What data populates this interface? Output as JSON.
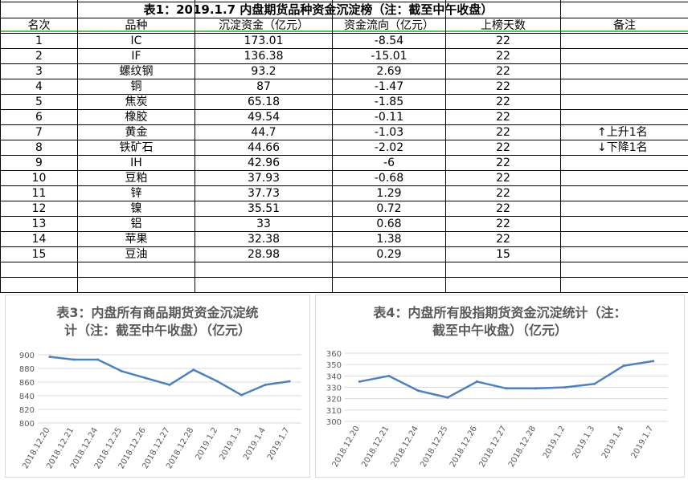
{
  "table": {
    "title": "表1：2019.1.7 内盘期货品种资金沉淀榜（注：截至中午收盘）",
    "headers": [
      "名次",
      "品种",
      "沉淀资金（亿元）",
      "资金流向（亿元）",
      "上榜天数",
      "备注"
    ],
    "rows": [
      {
        "rank": "1",
        "name": "IC",
        "fund": "173.01",
        "flow": "-8.54",
        "days": "22",
        "note": ""
      },
      {
        "rank": "2",
        "name": "IF",
        "fund": "136.38",
        "flow": "-15.01",
        "days": "22",
        "note": ""
      },
      {
        "rank": "3",
        "name": "螺纹钢",
        "fund": "93.2",
        "flow": "2.69",
        "days": "22",
        "note": ""
      },
      {
        "rank": "4",
        "name": "铜",
        "fund": "87",
        "flow": "-1.47",
        "days": "22",
        "note": ""
      },
      {
        "rank": "5",
        "name": "焦炭",
        "fund": "65.18",
        "flow": "-1.85",
        "days": "22",
        "note": ""
      },
      {
        "rank": "6",
        "name": "橡胶",
        "fund": "49.54",
        "flow": "-0.11",
        "days": "22",
        "note": ""
      },
      {
        "rank": "7",
        "name": "黄金",
        "fund": "44.7",
        "flow": "-1.03",
        "days": "22",
        "note": "↑上升1名"
      },
      {
        "rank": "8",
        "name": "铁矿石",
        "fund": "44.66",
        "flow": "-2.02",
        "days": "22",
        "note": "↓下降1名"
      },
      {
        "rank": "9",
        "name": "IH",
        "fund": "42.96",
        "flow": "-6",
        "days": "22",
        "note": ""
      },
      {
        "rank": "10",
        "name": "豆粕",
        "fund": "37.93",
        "flow": "-0.68",
        "days": "22",
        "note": ""
      },
      {
        "rank": "11",
        "name": "锌",
        "fund": "37.73",
        "flow": "1.29",
        "days": "22",
        "note": ""
      },
      {
        "rank": "12",
        "name": "镍",
        "fund": "35.51",
        "flow": "0.72",
        "days": "22",
        "note": ""
      },
      {
        "rank": "13",
        "name": "铝",
        "fund": "33",
        "flow": "0.68",
        "days": "22",
        "note": ""
      },
      {
        "rank": "14",
        "name": "苹果",
        "fund": "32.38",
        "flow": "1.38",
        "days": "22",
        "note": ""
      },
      {
        "rank": "15",
        "name": "豆油",
        "fund": "28.98",
        "flow": "0.29",
        "days": "15",
        "note": ""
      }
    ]
  },
  "chart_data": [
    {
      "type": "line",
      "title": "表3：内盘所有商品期货资金沉淀统计（注：截至中午收盘）（亿元）",
      "title_lines": [
        "表3：内盘所有商品期货资金沉淀统",
        "计（注：截至中午收盘）（亿元）"
      ],
      "x": [
        "2018.12.20",
        "2018.12.21",
        "2018.12.24",
        "2018.12.25",
        "2018.12.26",
        "2018.12.27",
        "2018.12.28",
        "2019.1.2",
        "2019.1.3",
        "2019.1.4",
        "2019.1.7"
      ],
      "series": [
        {
          "values": [
            897,
            893,
            893,
            876,
            866,
            856,
            878,
            861,
            841,
            856,
            861
          ]
        }
      ],
      "ylim": [
        800,
        900
      ],
      "yticks": [
        800,
        820,
        840,
        860,
        880,
        900
      ],
      "grid": true,
      "color": "#4f81bd"
    },
    {
      "type": "line",
      "title": "表4：内盘所有股指期货资金沉淀统计（注：截至中午收盘）（亿元）",
      "title_lines": [
        "表4：内盘所有股指期货资金沉淀统计（注：",
        "截至中午收盘）（亿元）"
      ],
      "x": [
        "2018.12.20",
        "2018.12.21",
        "2018.12.24",
        "2018.12.25",
        "2018.12.26",
        "2018.12.27",
        "2018.12.28",
        "2019.1.2",
        "2019.1.3",
        "2019.1.4",
        "2019.1.7"
      ],
      "series": [
        {
          "values": [
            335,
            340,
            327,
            321,
            335,
            329,
            329,
            330,
            333,
            349,
            353
          ]
        }
      ],
      "ylim": [
        300,
        360
      ],
      "yticks": [
        300,
        310,
        320,
        330,
        340,
        350,
        360
      ],
      "grid": true,
      "color": "#4f81bd"
    }
  ]
}
